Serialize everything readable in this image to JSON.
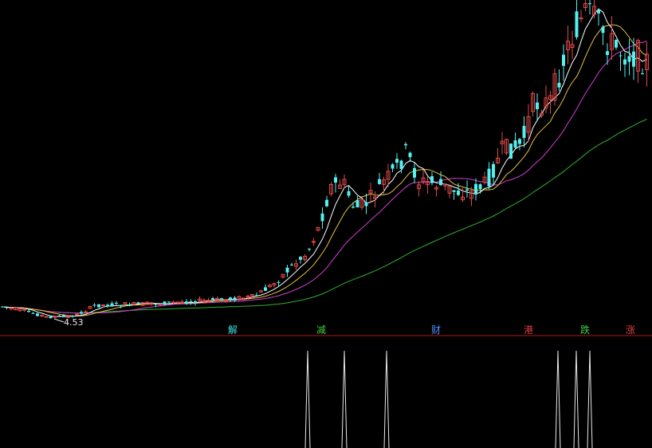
{
  "chart_data": {
    "type": "candlestick",
    "colors": {
      "background": "#000000",
      "up": "#e04848",
      "down": "#54f0f0",
      "ma5": "#ffffff",
      "ma10": "#e8c040",
      "ma20": "#d040d0",
      "ma60": "#30b030",
      "divider": "#b01818",
      "indicator": "#e8e8e8"
    },
    "low_annotation": "4.53",
    "markers": [
      {
        "label": "解",
        "color": "#40e0e0"
      },
      {
        "label": "减",
        "color": "#40d040"
      },
      {
        "label": "财",
        "color": "#5090ff"
      },
      {
        "label": "港",
        "color": "#e04040"
      },
      {
        "label": "跌",
        "color": "#40d040"
      },
      {
        "label": "涨",
        "color": "#e04040"
      }
    ],
    "indicator_spikes": 6
  }
}
